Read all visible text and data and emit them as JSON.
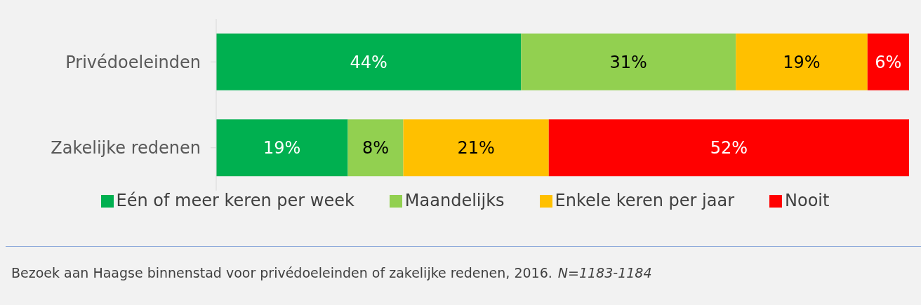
{
  "chart_data": {
    "type": "bar",
    "orientation": "horizontal",
    "stacked": true,
    "categories": [
      "Privédoeleinden",
      "Zakelijke redenen"
    ],
    "series": [
      {
        "name": "Eén of meer keren per week",
        "color": "#00b050",
        "values": [
          44,
          19
        ],
        "value_labels": [
          "44%",
          "19%"
        ]
      },
      {
        "name": "Maandelijks",
        "color": "#92d050",
        "values": [
          31,
          8
        ],
        "value_labels": [
          "31%",
          "8%"
        ]
      },
      {
        "name": "Enkele keren per jaar",
        "color": "#ffc000",
        "values": [
          19,
          21
        ],
        "value_labels": [
          "19%",
          "21%"
        ]
      },
      {
        "name": "Nooit",
        "color": "#ff0000",
        "values": [
          6,
          52
        ],
        "value_labels": [
          "6%",
          "52%"
        ]
      }
    ],
    "xlim": [
      0,
      100
    ],
    "tick_labels": "y",
    "grid": false,
    "legend": "bottom",
    "annotations": [
      "Bezoek aan Haagse binnenstad voor privédoeleinden of zakelijke redenen, 2016.",
      "N=1183-1184"
    ]
  }
}
